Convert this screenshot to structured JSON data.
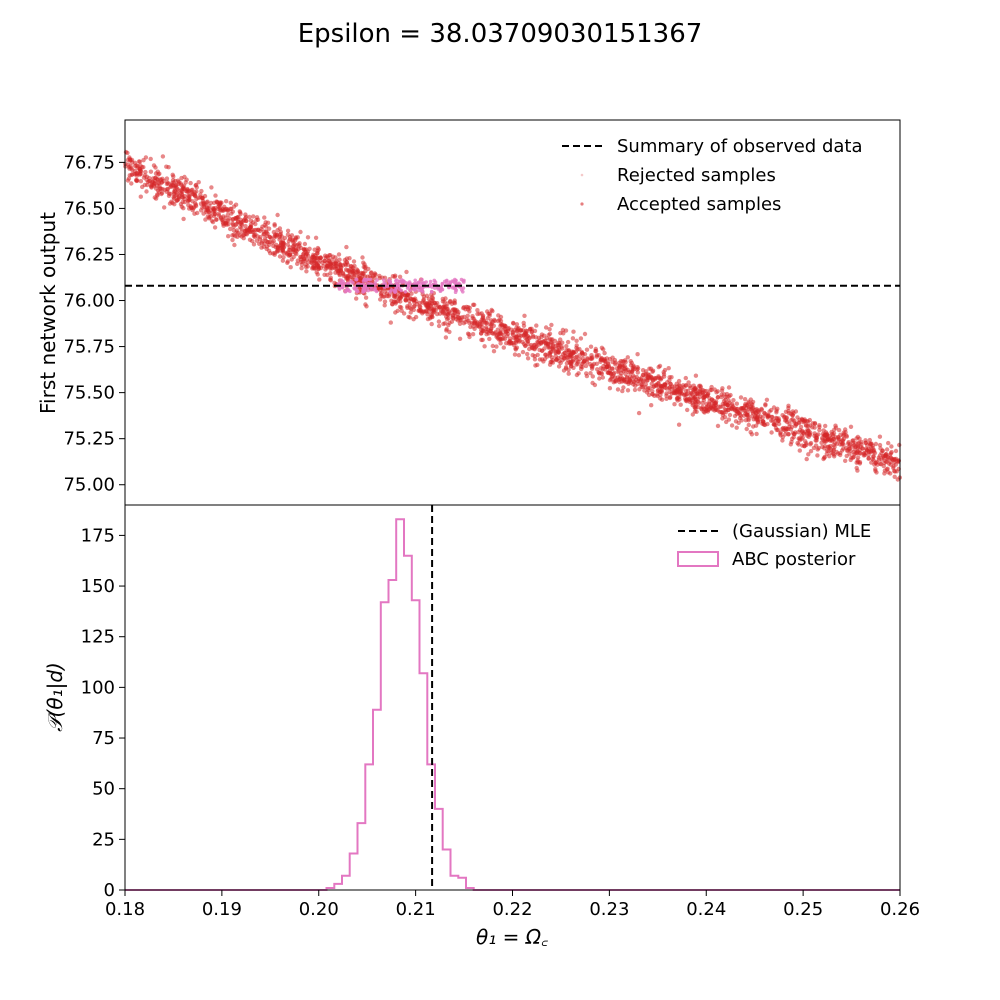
{
  "figure": {
    "title": "Epsilon = 38.03709030151367"
  },
  "colors": {
    "scatter": "#d62728",
    "accepted": "#e377c2",
    "observed_line": "#000000",
    "posterior": "#e377c2"
  },
  "chart_data": [
    {
      "type": "scatter",
      "ylabel": "First network output",
      "xlim": [
        0.18,
        0.26
      ],
      "ylim": [
        74.89,
        76.98
      ],
      "yticks": [
        75.0,
        75.25,
        75.5,
        75.75,
        76.0,
        76.25,
        76.5,
        76.75
      ],
      "ytick_labels": [
        "75.00",
        "75.25",
        "75.50",
        "75.75",
        "76.00",
        "76.25",
        "76.50",
        "76.75"
      ],
      "trend_x": [
        0.18,
        0.19,
        0.2,
        0.21,
        0.22,
        0.23,
        0.24,
        0.25,
        0.26
      ],
      "trend_y": [
        76.73,
        76.47,
        76.21,
        76.0,
        75.81,
        75.63,
        75.46,
        75.29,
        75.12
      ],
      "observed_summary": 76.08,
      "accepted_x_range": [
        0.202,
        0.215
      ],
      "legend_position": "top-right",
      "legend": [
        {
          "label": "Summary of observed data",
          "style": "dashed-line"
        },
        {
          "label": "Rejected samples",
          "style": "dot"
        },
        {
          "label": "Accepted samples",
          "style": "dot"
        }
      ]
    },
    {
      "type": "histogram",
      "xlabel": "θ₁ = Ω꜀",
      "ylabel": "𝒫(θ₁|d)",
      "xlim": [
        0.18,
        0.26
      ],
      "ylim": [
        0,
        190
      ],
      "xticks": [
        0.18,
        0.19,
        0.2,
        0.21,
        0.22,
        0.23,
        0.24,
        0.25,
        0.26
      ],
      "xtick_labels": [
        "0.18",
        "0.19",
        "0.20",
        "0.21",
        "0.22",
        "0.23",
        "0.24",
        "0.25",
        "0.26"
      ],
      "yticks": [
        0,
        25,
        50,
        75,
        100,
        125,
        150,
        175
      ],
      "ytick_labels": [
        "0",
        "25",
        "50",
        "75",
        "100",
        "125",
        "150",
        "175"
      ],
      "bin_edges": [
        0.2008,
        0.2016,
        0.2024,
        0.2032,
        0.204,
        0.2048,
        0.2056,
        0.2064,
        0.2072,
        0.208,
        0.2088,
        0.2096,
        0.2104,
        0.2112,
        0.212,
        0.2128,
        0.2136,
        0.2144,
        0.2152,
        0.216
      ],
      "values": [
        1,
        3,
        7,
        18,
        33,
        62,
        89,
        142,
        153,
        183,
        165,
        143,
        107,
        62,
        40,
        20,
        7,
        6,
        1
      ],
      "mle": 0.2117,
      "legend_position": "top-right",
      "legend": [
        {
          "label": "(Gaussian) MLE",
          "style": "dashed-line"
        },
        {
          "label": "ABC posterior",
          "style": "step-box"
        }
      ]
    }
  ]
}
